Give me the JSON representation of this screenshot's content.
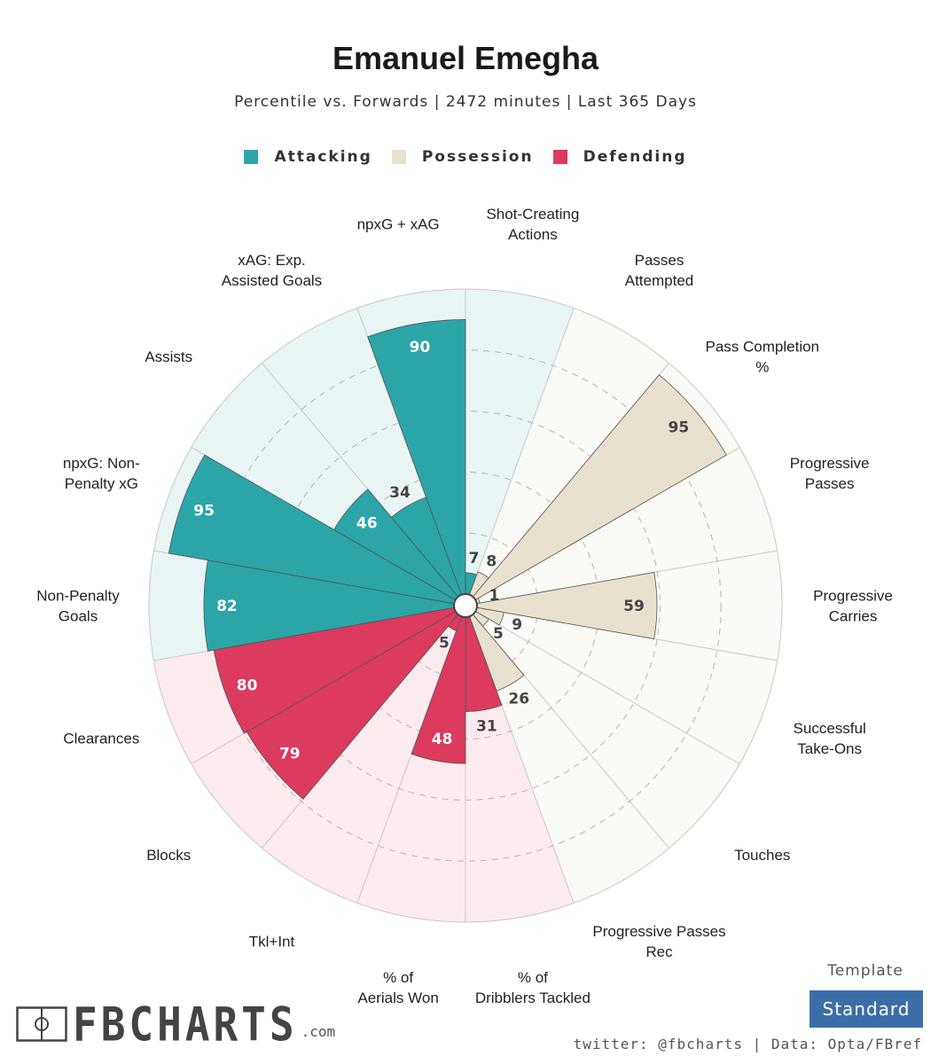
{
  "header": {
    "title": "Emanuel Emegha",
    "subtitle": "Percentile vs. Forwards | 2472 minutes | Last 365 Days"
  },
  "legend": [
    {
      "label": "Attacking",
      "color": "#2ca5a9"
    },
    {
      "label": "Possession",
      "color": "#e8e1cf"
    },
    {
      "label": "Defending",
      "color": "#dc3a5e"
    }
  ],
  "footer": {
    "template_label": "Template",
    "template_value": "Standard",
    "credit": "twitter: @fbcharts | Data: Opta/FBref",
    "logo_text": "FBCHARTS",
    "logo_suffix": ".com"
  },
  "chart_data": {
    "type": "radial-bar",
    "rlim": [
      0,
      100
    ],
    "grid": true,
    "categories": [
      {
        "label": "Shot-Creating Actions",
        "value": 7,
        "group": "Attacking"
      },
      {
        "label": "Passes Attempted",
        "value": 8,
        "group": "Possession"
      },
      {
        "label": "Pass Completion %",
        "value": 95,
        "group": "Possession"
      },
      {
        "label": "Progressive Passes",
        "value": 1,
        "group": "Possession"
      },
      {
        "label": "Progressive Carries",
        "value": 59,
        "group": "Possession"
      },
      {
        "label": "Successful Take-Ons",
        "value": 9,
        "group": "Possession"
      },
      {
        "label": "Touches",
        "value": 5,
        "group": "Possession"
      },
      {
        "label": "Progressive Passes Rec",
        "value": 26,
        "group": "Possession"
      },
      {
        "label": "% of Dribblers Tackled",
        "value": 31,
        "group": "Defending"
      },
      {
        "label": "% of Aerials Won",
        "value": 48,
        "group": "Defending"
      },
      {
        "label": "Tkl+Int",
        "value": 5,
        "group": "Defending"
      },
      {
        "label": "Blocks",
        "value": 79,
        "group": "Defending"
      },
      {
        "label": "Clearances",
        "value": 80,
        "group": "Defending"
      },
      {
        "label": "Non-Penalty Goals",
        "value": 82,
        "group": "Attacking"
      },
      {
        "label": "npxG: Non-Penalty xG",
        "value": 95,
        "group": "Attacking"
      },
      {
        "label": "Assists",
        "value": 46,
        "group": "Attacking"
      },
      {
        "label": "xAG: Exp. Assisted Goals",
        "value": 34,
        "group": "Attacking"
      },
      {
        "label": "npxG + xAG",
        "value": 90,
        "group": "Attacking"
      }
    ],
    "group_colors": {
      "Attacking": {
        "bar": "#2ca5a9",
        "bg": "#e9f5f5",
        "text": "#ffffff"
      },
      "Possession": {
        "bar": "#e8e1cf",
        "bg": "#fafaf7",
        "text": "#444444"
      },
      "Defending": {
        "bar": "#dc3a5e",
        "bg": "#fcebee",
        "text": "#ffffff"
      }
    }
  }
}
